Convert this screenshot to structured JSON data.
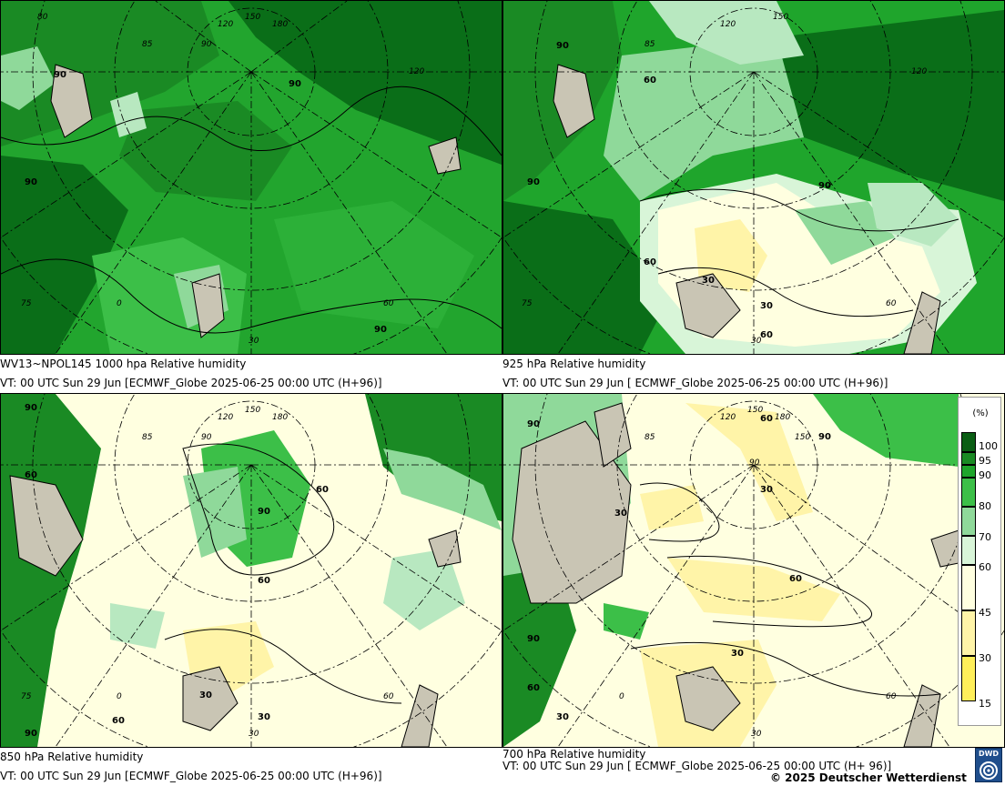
{
  "panels": [
    {
      "title": "WV13~NPOL145 1000 hpa Relative humidity",
      "valid": "VT: 00 UTC Sun  29 Jun [ECMWF_Globe 2025-06-25 00:00 UTC  (H+96)]"
    },
    {
      "title": "925 hPa Relative humidity",
      "valid": "VT: 00 UTC Sun  29 Jun [ ECMWF_Globe 2025-06-25 00:00 UTC  (H+96)]"
    },
    {
      "title": "850 hPa  Relative humidity",
      "valid": "VT: 00 UTC Sun  29 Jun [ECMWF_Globe 2025-06-25 00:00 UTC  (H+96)]"
    },
    {
      "title": "700 hPa Relative humidity",
      "valid": "VT: 00 UTC Sun  29 Jun [ ECMWF_Globe 2025-06-25 00:00 UTC  (H+ 96)]"
    }
  ],
  "grid_labels": [
    "150",
    "180",
    "120",
    "90",
    "85",
    "80",
    "75",
    "60",
    "30",
    "0"
  ],
  "contour_labels": [
    "90",
    "60",
    "30"
  ],
  "legend": {
    "unit": "(%)",
    "levels": [
      "100",
      "95",
      "90",
      "80",
      "70",
      "60",
      "45",
      "30",
      "15"
    ],
    "colors": [
      "#0a5e14",
      "#1a8a24",
      "#1fa52c",
      "#3cbf48",
      "#8fd99a",
      "#d8f5d8",
      "#ffffe0",
      "#fff4a8",
      "#ffef5a"
    ]
  },
  "colors": {
    "very_moist": "#0a6e18",
    "moist": "#22a52e",
    "humid": "#4cc25a",
    "medium": "#b8e8c0",
    "dry": "#ffffe0",
    "very_dry": "#fff08a",
    "land": "#c9c5b4"
  },
  "copyright": "© 2025 Deutscher Wetterdienst",
  "logo_text": "DWD"
}
